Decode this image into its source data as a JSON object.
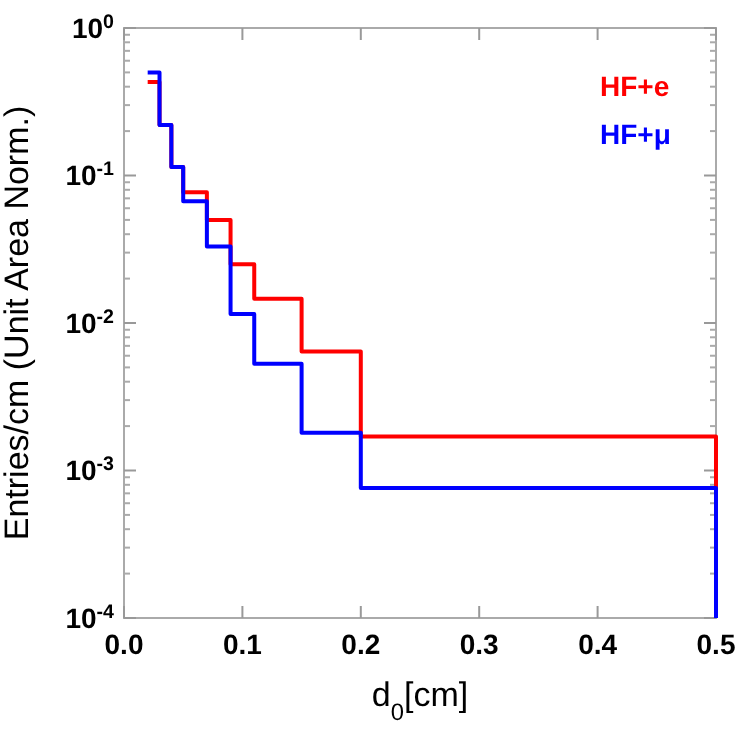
{
  "chart_data": {
    "type": "histogram",
    "xlabel": "d$_{0}$[cm]",
    "ylabel": "Entries/cm (Unit Area Norm.)",
    "log": "y",
    "legend": "top right",
    "bins": [
      0.02,
      0.03,
      0.04,
      0.05,
      0.07,
      0.09,
      0.11,
      0.15,
      0.2,
      0.5
    ],
    "series": [
      {
        "name": "HF+e",
        "color": "#ff0000",
        "values": [
          0.43,
          0.22,
          0.114,
          0.077,
          0.05,
          0.025,
          0.0146,
          0.0064,
          0.0017
        ]
      },
      {
        "name": "HF+μ",
        "color": "#0000ff",
        "values": [
          0.5,
          0.22,
          0.114,
          0.067,
          0.033,
          0.0115,
          0.0053,
          0.0018,
          0.00076
        ]
      }
    ],
    "xlim": [
      0,
      0.5
    ],
    "ylim": [
      0.0001,
      1
    ],
    "xticks": [
      {
        "value": 0,
        "label": "0.0"
      },
      0.1,
      0.2,
      0.3,
      0.4,
      0.5
    ],
    "yticks": [
      {
        "value": 0.0001,
        "label": "10$^{-4}$"
      },
      {
        "value": 0.001,
        "label": "10$^{-3}$"
      },
      {
        "value": 0.01,
        "label": "10$^{-2}$"
      },
      {
        "value": 0.1,
        "label": "10$^{-1}$"
      },
      {
        "value": 1,
        "label": "10$^{0}$"
      }
    ]
  }
}
